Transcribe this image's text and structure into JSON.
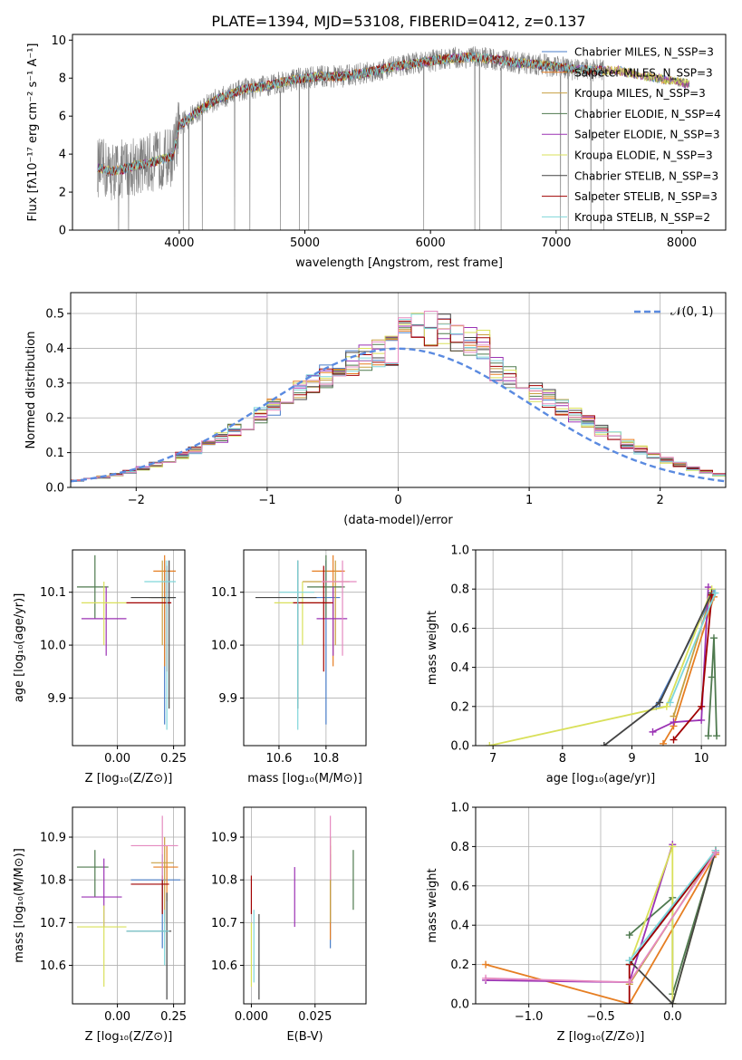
{
  "figure": {
    "title": "PLATE=1394, MJD=53108, FIBERID=0412, z=0.137"
  },
  "palette": {
    "Chabrier MILES": "#4a7ec9",
    "Salpeter MILES": "#e67e22",
    "Kroupa MILES": "#c8a042",
    "Chabrier ELODIE": "#4f7a4f",
    "Salpeter ELODIE": "#9b32b4",
    "Kroupa ELODIE": "#d9e05a",
    "Chabrier STELIB": "#444444",
    "Salpeter STELIB": "#a00000",
    "Kroupa STELIB": "#7fd6da",
    "spectrum": "#808080",
    "extra": "#e58ac0",
    "normal": "#5a8ae0",
    "grid": "#b0b0b0"
  },
  "chart_data": [
    {
      "id": "spectrum",
      "type": "line",
      "title": "PLATE=1394, MJD=53108, FIBERID=0412, z=0.137",
      "xlabel": "wavelength [Angstrom, rest frame]",
      "ylabel": "Flux [fλ10⁻¹⁷ erg cm⁻² s⁻¹ A⁻¹]",
      "xlim": [
        3150,
        8350
      ],
      "ylim": [
        0,
        10.3
      ],
      "xticks": [
        4000,
        5000,
        6000,
        7000,
        8000
      ],
      "yticks": [
        0,
        2,
        4,
        6,
        8,
        10
      ],
      "grid": false,
      "legend_loc": "right",
      "legend": [
        "Chabrier MILES, N_SSP=3",
        "Salpeter MILES, N_SSP=3",
        "Kroupa MILES, N_SSP=3",
        "Chabrier ELODIE, N_SSP=4",
        "Salpeter ELODIE, N_SSP=3",
        "Kroupa ELODIE, N_SSP=3",
        "Chabrier STELIB, N_SSP=3",
        "Salpeter STELIB, N_SSP=3",
        "Kroupa STELIB, N_SSP=2"
      ],
      "continuum": {
        "x": [
          3350,
          3450,
          3550,
          3650,
          3750,
          3850,
          3950,
          4000,
          4100,
          4200,
          4300,
          4400,
          4500,
          4700,
          4900,
          5100,
          5300,
          5500,
          5700,
          5900,
          6100,
          6300,
          6500,
          6700,
          6900,
          7100,
          7300,
          7500,
          7700,
          7900,
          8050
        ],
        "y": [
          3.3,
          3.1,
          3.2,
          3.4,
          3.5,
          3.7,
          3.9,
          5.5,
          6.0,
          6.5,
          6.9,
          7.1,
          7.4,
          7.6,
          7.9,
          8.1,
          8.1,
          8.3,
          8.6,
          8.8,
          9.0,
          9.1,
          9.0,
          8.8,
          8.7,
          8.5,
          8.4,
          8.4,
          8.1,
          7.9,
          7.7
        ]
      }
    },
    {
      "id": "residuals",
      "type": "histogram",
      "xlabel": "(data-model)/error",
      "ylabel": "Normed distribution",
      "xlim": [
        -2.5,
        2.5
      ],
      "ylim": [
        0,
        0.56
      ],
      "xticks": [
        -2,
        -1,
        0,
        1,
        2
      ],
      "yticks": [
        0.0,
        0.1,
        0.2,
        0.3,
        0.4,
        0.5
      ],
      "grid": true,
      "legend_loc": "top-right",
      "legend": [
        "𝒩(0, 1)"
      ],
      "bin_width": 0.1
    },
    {
      "id": "age-vs-Z",
      "type": "errorbar",
      "xlabel": "Z [log₁₀(Z/Z⊙)]",
      "ylabel": "age  [log₁₀(age/yr)]",
      "xlim": [
        -0.2,
        0.3
      ],
      "ylim": [
        9.81,
        10.18
      ],
      "xticks": [
        0.0,
        0.25
      ],
      "yticks": [
        9.9,
        10.0,
        10.1
      ],
      "grid": true,
      "points": [
        {
          "series": "Chabrier MILES",
          "x": 0.21,
          "y": 10.09,
          "x_range": [
            0.15,
            0.26
          ],
          "y_range": [
            9.85,
            10.16
          ]
        },
        {
          "series": "Salpeter MILES",
          "x": 0.21,
          "y": 10.14,
          "x_range": [
            0.16,
            0.26
          ],
          "y_range": [
            9.96,
            10.17
          ]
        },
        {
          "series": "Kroupa MILES",
          "x": 0.2,
          "y": 10.09,
          "x_range": [
            0.14,
            0.25
          ],
          "y_range": [
            10.0,
            10.16
          ]
        },
        {
          "series": "Chabrier ELODIE",
          "x": -0.1,
          "y": 10.11,
          "x_range": [
            -0.18,
            -0.04
          ],
          "y_range": [
            10.05,
            10.17
          ]
        },
        {
          "series": "Salpeter ELODIE",
          "x": -0.05,
          "y": 10.05,
          "x_range": [
            -0.16,
            0.04
          ],
          "y_range": [
            9.98,
            10.11
          ]
        },
        {
          "series": "Kroupa ELODIE",
          "x": -0.06,
          "y": 10.08,
          "x_range": [
            -0.16,
            0.04
          ],
          "y_range": [
            10.0,
            10.12
          ]
        },
        {
          "series": "Chabrier STELIB",
          "x": 0.23,
          "y": 10.09,
          "x_range": [
            0.06,
            0.26
          ],
          "y_range": [
            9.88,
            10.16
          ]
        },
        {
          "series": "Salpeter STELIB",
          "x": 0.22,
          "y": 10.08,
          "x_range": [
            0.04,
            0.24
          ],
          "y_range": [
            9.95,
            10.15
          ]
        },
        {
          "series": "Kroupa STELIB",
          "x": 0.22,
          "y": 10.12,
          "x_range": [
            0.12,
            0.26
          ],
          "y_range": [
            9.84,
            10.16
          ]
        }
      ]
    },
    {
      "id": "age-vs-mass",
      "type": "errorbar",
      "xlabel": "mass [log₁₀(M/M⊙)]",
      "ylabel": "",
      "xlim": [
        10.45,
        10.97
      ],
      "ylim": [
        9.81,
        10.18
      ],
      "xticks": [
        10.6,
        10.8
      ],
      "yticks": [
        9.9,
        10.0,
        10.1
      ],
      "grid": true,
      "points": [
        {
          "series": "Chabrier MILES",
          "x": 10.8,
          "y": 10.09,
          "x_range": [
            10.68,
            10.86
          ],
          "y_range": [
            9.85,
            10.16
          ]
        },
        {
          "series": "Salpeter MILES",
          "x": 10.83,
          "y": 10.14,
          "x_range": [
            10.74,
            10.88
          ],
          "y_range": [
            9.96,
            10.17
          ]
        },
        {
          "series": "Kroupa MILES",
          "x": 10.84,
          "y": 10.12,
          "x_range": [
            10.7,
            10.9
          ],
          "y_range": [
            10.0,
            10.16
          ]
        },
        {
          "series": "Chabrier ELODIE",
          "x": 10.8,
          "y": 10.11,
          "x_range": [
            10.72,
            10.88
          ],
          "y_range": [
            10.05,
            10.17
          ]
        },
        {
          "series": "Salpeter ELODIE",
          "x": 10.83,
          "y": 10.05,
          "x_range": [
            10.76,
            10.89
          ],
          "y_range": [
            9.98,
            10.11
          ]
        },
        {
          "series": "Kroupa ELODIE",
          "x": 10.7,
          "y": 10.08,
          "x_range": [
            10.58,
            10.8
          ],
          "y_range": [
            10.0,
            10.12
          ]
        },
        {
          "series": "Chabrier STELIB",
          "x": 10.68,
          "y": 10.09,
          "x_range": [
            10.5,
            10.76
          ],
          "y_range": [
            9.88,
            10.16
          ]
        },
        {
          "series": "Salpeter STELIB",
          "x": 10.79,
          "y": 10.08,
          "x_range": [
            10.66,
            10.83
          ],
          "y_range": [
            9.95,
            10.15
          ]
        },
        {
          "series": "Kroupa STELIB",
          "x": 10.68,
          "y": 10.1,
          "x_range": [
            10.6,
            10.75
          ],
          "y_range": [
            9.84,
            10.16
          ]
        },
        {
          "series": "extra",
          "x": 10.87,
          "y": 10.12,
          "x_range": [
            10.78,
            10.93
          ],
          "y_range": [
            9.98,
            10.16
          ]
        }
      ]
    },
    {
      "id": "weight-vs-age",
      "type": "line",
      "xlabel": "age  [log₁₀(age/yr)]",
      "ylabel": "mass weight",
      "xlim": [
        6.75,
        10.35
      ],
      "ylim": [
        0,
        1.0
      ],
      "xticks": [
        7,
        8,
        9,
        10
      ],
      "yticks": [
        0.0,
        0.2,
        0.4,
        0.6,
        0.8,
        1.0
      ],
      "grid": true,
      "series": [
        {
          "name": "Chabrier MILES",
          "x": [
            9.35,
            10.18
          ],
          "y": [
            0.2,
            0.78
          ]
        },
        {
          "name": "Salpeter MILES",
          "x": [
            9.45,
            9.6,
            10.18
          ],
          "y": [
            0.01,
            0.1,
            0.76
          ]
        },
        {
          "name": "Kroupa MILES",
          "x": [
            9.6,
            10.15
          ],
          "y": [
            0.15,
            0.78
          ]
        },
        {
          "name": "Chabrier ELODIE",
          "x": [
            10.1,
            10.15,
            10.18,
            10.22
          ],
          "y": [
            0.05,
            0.35,
            0.55,
            0.05
          ]
        },
        {
          "name": "Salpeter ELODIE",
          "x": [
            9.3,
            9.6,
            10.0,
            10.1
          ],
          "y": [
            0.07,
            0.12,
            0.13,
            0.81
          ]
        },
        {
          "name": "Kroupa ELODIE",
          "x": [
            6.95,
            9.5,
            10.15
          ],
          "y": [
            0.0,
            0.2,
            0.8
          ]
        },
        {
          "name": "Chabrier STELIB",
          "x": [
            8.6,
            9.4,
            10.15
          ],
          "y": [
            0.0,
            0.22,
            0.78
          ]
        },
        {
          "name": "Salpeter STELIB",
          "x": [
            9.6,
            10.0,
            10.15
          ],
          "y": [
            0.03,
            0.2,
            0.77
          ]
        },
        {
          "name": "Kroupa STELIB",
          "x": [
            9.55,
            10.2
          ],
          "y": [
            0.22,
            0.78
          ]
        }
      ]
    },
    {
      "id": "mass-vs-Z",
      "type": "errorbar",
      "xlabel": "Z [log₁₀(Z/Z⊙)]",
      "ylabel": "mass [log₁₀(M/M⊙)]",
      "xlim": [
        -0.2,
        0.3
      ],
      "ylim": [
        10.51,
        10.97
      ],
      "xticks": [
        0.0,
        0.25
      ],
      "yticks": [
        10.6,
        10.7,
        10.8,
        10.9
      ],
      "grid": true,
      "points": [
        {
          "series": "Chabrier MILES",
          "x": 0.2,
          "y": 10.8,
          "x_range": [
            0.06,
            0.28
          ],
          "y_range": [
            10.64,
            10.86
          ]
        },
        {
          "series": "Salpeter MILES",
          "x": 0.22,
          "y": 10.83,
          "x_range": [
            0.16,
            0.27
          ],
          "y_range": [
            10.75,
            10.88
          ]
        },
        {
          "series": "Kroupa MILES",
          "x": 0.21,
          "y": 10.84,
          "x_range": [
            0.15,
            0.25
          ],
          "y_range": [
            10.7,
            10.9
          ]
        },
        {
          "series": "Chabrier ELODIE",
          "x": -0.1,
          "y": 10.83,
          "x_range": [
            -0.18,
            -0.04
          ],
          "y_range": [
            10.76,
            10.87
          ]
        },
        {
          "series": "Salpeter ELODIE",
          "x": -0.06,
          "y": 10.76,
          "x_range": [
            -0.16,
            0.02
          ],
          "y_range": [
            10.69,
            10.85
          ]
        },
        {
          "series": "Kroupa ELODIE",
          "x": -0.06,
          "y": 10.69,
          "x_range": [
            -0.18,
            0.04
          ],
          "y_range": [
            10.55,
            10.74
          ]
        },
        {
          "series": "Chabrier STELIB",
          "x": 0.22,
          "y": 10.68,
          "x_range": [
            0.04,
            0.24
          ],
          "y_range": [
            10.52,
            10.77
          ]
        },
        {
          "series": "Salpeter STELIB",
          "x": 0.2,
          "y": 10.79,
          "x_range": [
            0.06,
            0.23
          ],
          "y_range": [
            10.72,
            10.81
          ]
        },
        {
          "series": "Kroupa STELIB",
          "x": 0.21,
          "y": 10.68,
          "x_range": [
            0.04,
            0.23
          ],
          "y_range": [
            10.6,
            10.73
          ]
        },
        {
          "series": "extra",
          "x": 0.2,
          "y": 10.88,
          "x_range": [
            0.06,
            0.27
          ],
          "y_range": [
            10.8,
            10.95
          ]
        }
      ]
    },
    {
      "id": "mass-vs-EBV",
      "type": "errorbar",
      "xlabel": "E(B-V)",
      "ylabel": "",
      "xlim": [
        -0.003,
        0.045
      ],
      "ylim": [
        10.51,
        10.97
      ],
      "xticks": [
        0.0,
        0.025
      ],
      "yticks": [
        10.6,
        10.7,
        10.8,
        10.9
      ],
      "grid": true,
      "points": [
        {
          "series": "Chabrier MILES",
          "x": 0.031,
          "y": 10.8,
          "y_range": [
            10.64,
            10.86
          ]
        },
        {
          "series": "Salpeter MILES",
          "x": 0.031,
          "y": 10.83,
          "y_range": [
            10.66,
            10.88
          ]
        },
        {
          "series": "Kroupa MILES",
          "x": 0.031,
          "y": 10.84,
          "y_range": [
            10.7,
            10.9
          ]
        },
        {
          "series": "Chabrier ELODIE",
          "x": 0.04,
          "y": 10.8,
          "y_range": [
            10.73,
            10.87
          ]
        },
        {
          "series": "Salpeter ELODIE",
          "x": 0.017,
          "y": 10.76,
          "y_range": [
            10.69,
            10.83
          ]
        },
        {
          "series": "Kroupa ELODIE",
          "x": 0.0,
          "y": 10.62,
          "y_range": [
            10.55,
            10.7
          ]
        },
        {
          "series": "Chabrier STELIB",
          "x": 0.003,
          "y": 10.65,
          "y_range": [
            10.52,
            10.72
          ]
        },
        {
          "series": "Salpeter STELIB",
          "x": 0.0,
          "y": 10.76,
          "y_range": [
            10.72,
            10.81
          ]
        },
        {
          "series": "Kroupa STELIB",
          "x": 0.001,
          "y": 10.65,
          "y_range": [
            10.56,
            10.73
          ]
        },
        {
          "series": "extra",
          "x": 0.031,
          "y": 10.88,
          "y_range": [
            10.8,
            10.95
          ]
        }
      ]
    },
    {
      "id": "weight-vs-Z",
      "type": "line",
      "xlabel": "Z [log₁₀(Z/Z⊙)]",
      "ylabel": "mass weight",
      "xlim": [
        -1.37,
        0.37
      ],
      "ylim": [
        0,
        1.0
      ],
      "xticks": [
        -1.0,
        -0.5,
        0.0
      ],
      "yticks": [
        0.0,
        0.2,
        0.4,
        0.6,
        0.8,
        1.0
      ],
      "grid": true,
      "series": [
        {
          "name": "Chabrier MILES",
          "x": [
            -0.3,
            0.3
          ],
          "y": [
            0.2,
            0.78
          ]
        },
        {
          "name": "Salpeter MILES",
          "x": [
            -1.3,
            -0.3,
            0.3
          ],
          "y": [
            0.2,
            0.0,
            0.76
          ]
        },
        {
          "name": "Kroupa MILES",
          "x": [
            -0.3,
            0.3
          ],
          "y": [
            0.1,
            0.78
          ]
        },
        {
          "name": "Chabrier ELODIE",
          "x": [
            -0.3,
            0.0,
            0.0,
            0.3
          ],
          "y": [
            0.35,
            0.54,
            0.05,
            0.78
          ]
        },
        {
          "name": "Salpeter ELODIE",
          "x": [
            -1.3,
            -0.3,
            0.0
          ],
          "y": [
            0.12,
            0.11,
            0.81
          ]
        },
        {
          "name": "Kroupa ELODIE",
          "x": [
            -0.3,
            0.0,
            0.0,
            0.3
          ],
          "y": [
            0.2,
            0.8,
            0.0,
            0.78
          ]
        },
        {
          "name": "Chabrier STELIB",
          "x": [
            -0.3,
            0.0,
            0.3
          ],
          "y": [
            0.22,
            0.0,
            0.78
          ]
        },
        {
          "name": "Salpeter STELIB",
          "x": [
            -0.3,
            -0.3,
            0.3
          ],
          "y": [
            0.0,
            0.2,
            0.77
          ]
        },
        {
          "name": "Kroupa STELIB",
          "x": [
            -0.3,
            0.3
          ],
          "y": [
            0.22,
            0.78
          ]
        },
        {
          "name": "extra",
          "x": [
            -1.3,
            -0.3,
            0.3
          ],
          "y": [
            0.13,
            0.11,
            0.77
          ]
        }
      ]
    }
  ]
}
